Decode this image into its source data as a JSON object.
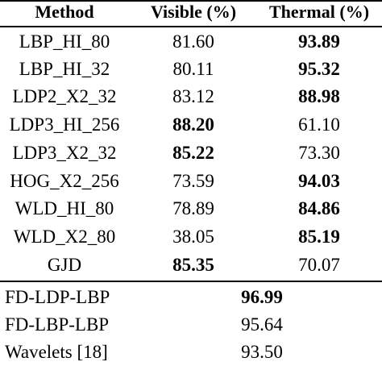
{
  "table": {
    "headers": [
      "Method",
      "Visible (%)",
      "Thermal (%)"
    ],
    "rows": [
      {
        "method": "LBP_HI_80",
        "visible": "81.60",
        "thermal": "93.89",
        "visible_bold": false,
        "thermal_bold": true
      },
      {
        "method": "LBP_HI_32",
        "visible": "80.11",
        "thermal": "95.32",
        "visible_bold": false,
        "thermal_bold": true
      },
      {
        "method": "LDP2_X2_32",
        "visible": "83.12",
        "thermal": "88.98",
        "visible_bold": false,
        "thermal_bold": true
      },
      {
        "method": "LDP3_HI_256",
        "visible": "88.20",
        "thermal": "61.10",
        "visible_bold": true,
        "thermal_bold": false
      },
      {
        "method": "LDP3_X2_32",
        "visible": "85.22",
        "thermal": "73.30",
        "visible_bold": true,
        "thermal_bold": false
      },
      {
        "method": "HOG_X2_256",
        "visible": "73.59",
        "thermal": "94.03",
        "visible_bold": false,
        "thermal_bold": true
      },
      {
        "method": "WLD_HI_80",
        "visible": "78.89",
        "thermal": "84.86",
        "visible_bold": false,
        "thermal_bold": true
      },
      {
        "method": "WLD_X2_80",
        "visible": "38.05",
        "thermal": "85.19",
        "visible_bold": false,
        "thermal_bold": true
      },
      {
        "method": "GJD",
        "visible": "85.35",
        "thermal": "70.07",
        "visible_bold": true,
        "thermal_bold": false
      }
    ],
    "combined_rows": [
      {
        "method": "FD-LDP-LBP",
        "value": "96.99",
        "bold": true
      },
      {
        "method": "FD-LBP-LBP",
        "value": "95.64",
        "bold": false
      },
      {
        "method": "Wavelets [18]",
        "value": "93.50",
        "bold": false
      }
    ]
  }
}
